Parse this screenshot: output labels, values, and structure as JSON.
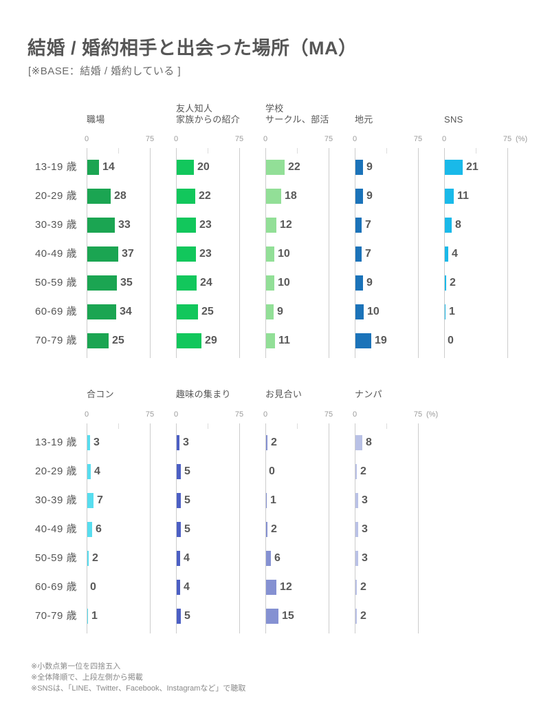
{
  "page": {
    "title": "結婚 / 婚約相手と出会った場所（MA）",
    "subtitle": "[※BASE：結婚 / 婚約している ]",
    "footnotes": [
      "※小数点第一位を四捨五入",
      "※全体降順で、上段左側から掲載",
      "※SNSは、「LINE、Twitter、Facebook、Instagramなど」で聴取"
    ]
  },
  "chart_data": {
    "type": "bar",
    "orientation": "horizontal",
    "categories": [
      "13-19 歳",
      "20-29 歳",
      "30-39 歳",
      "40-49 歳",
      "50-59 歳",
      "60-69 歳",
      "70-79 歳"
    ],
    "axis": {
      "min": 0,
      "max": 75,
      "tick_labels": [
        "0",
        "75"
      ],
      "unit": "(%)",
      "grid": "vertical-ends-only"
    },
    "legend_position": "none",
    "rows": [
      {
        "panels": [
          {
            "label": "職場",
            "color": "#1ba552",
            "values": [
              14,
              28,
              33,
              37,
              35,
              34,
              25
            ]
          },
          {
            "label": "友人知人\n家族からの紹介",
            "color": "#12c75c",
            "values": [
              20,
              22,
              23,
              23,
              24,
              25,
              29
            ]
          },
          {
            "label": "学校\nサークル、部活",
            "color": "#92df97",
            "values": [
              22,
              18,
              12,
              10,
              10,
              9,
              11
            ]
          },
          {
            "label": "地元",
            "color": "#1b73b9",
            "values": [
              9,
              9,
              7,
              7,
              9,
              10,
              19
            ]
          },
          {
            "label": "SNS",
            "color": "#19b9e9",
            "values": [
              21,
              11,
              8,
              4,
              2,
              1,
              0
            ]
          }
        ]
      },
      {
        "panels": [
          {
            "label": "合コン",
            "color": "#57ddef",
            "values": [
              3,
              4,
              7,
              6,
              2,
              0,
              1
            ]
          },
          {
            "label": "趣味の集まり",
            "color": "#4c5fc4",
            "values": [
              3,
              5,
              5,
              5,
              4,
              4,
              5
            ]
          },
          {
            "label": "お見合い",
            "color": "#8591d2",
            "values": [
              2,
              0,
              1,
              2,
              6,
              12,
              15
            ]
          },
          {
            "label": "ナンパ",
            "color": "#b9c1e6",
            "values": [
              8,
              2,
              3,
              3,
              3,
              2,
              2
            ]
          }
        ]
      }
    ]
  }
}
